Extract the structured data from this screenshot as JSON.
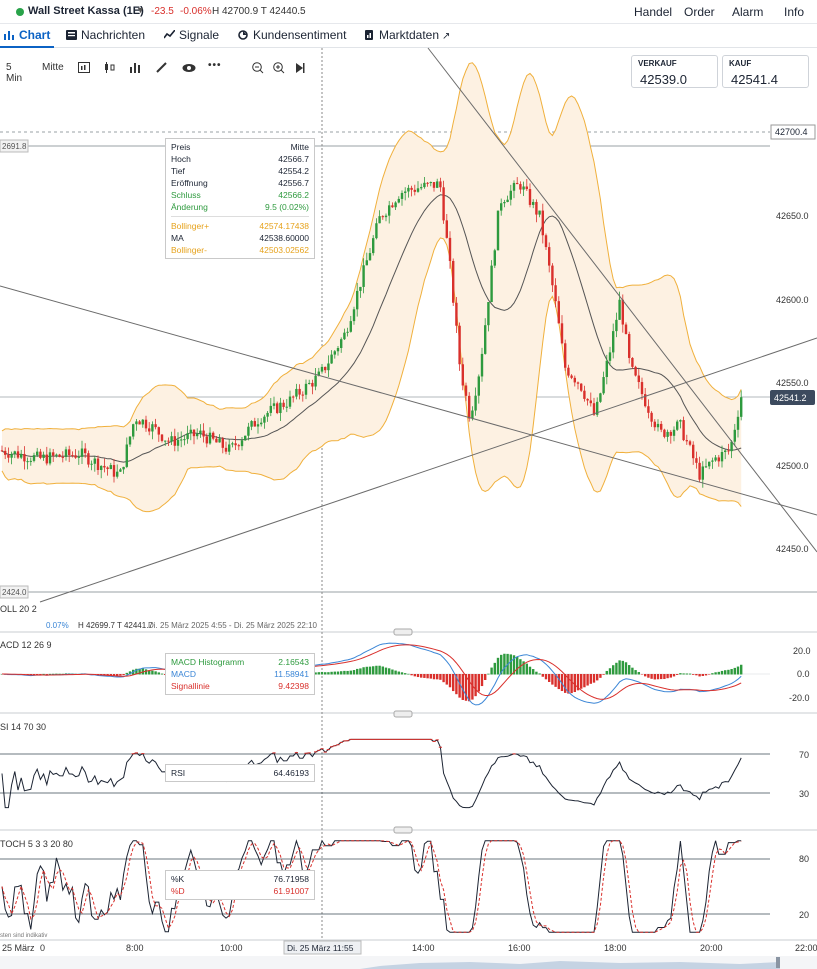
{
  "header": {
    "instrument": "Wall Street Kassa (1E)",
    "change": "-23.5",
    "change_pct": "-0.06%",
    "high_low": "H 42700.9  T 42440.5",
    "nav": [
      "Handel",
      "Order",
      "Alarm",
      "Info"
    ]
  },
  "tabs": [
    {
      "label": "Chart",
      "icon": "chart-icon"
    },
    {
      "label": "Nachrichten",
      "icon": "news-icon"
    },
    {
      "label": "Signale",
      "icon": "signal-icon"
    },
    {
      "label": "Kundensentiment",
      "icon": "sentiment-icon"
    },
    {
      "label": "Marktdaten",
      "icon": "marketdata-icon"
    }
  ],
  "toolbar": {
    "interval": "5 Min",
    "price_type": "Mitte",
    "icons": [
      "chart-type-icon",
      "candle-icon",
      "indicator-icon",
      "draw-icon",
      "eye-icon",
      "more-icon",
      "zoom-out-icon",
      "zoom-in-icon",
      "play-icon"
    ]
  },
  "quotes": {
    "sell_label": "VERKAUF",
    "sell_value": "42539.0",
    "buy_label": "KAUF",
    "buy_value": "42541.4"
  },
  "price_axis": {
    "ticks": [
      "42650.0",
      "42600.0",
      "42550.0",
      "42500.0",
      "42450.0"
    ],
    "high_tag": "42700.4",
    "last_tag": "42541.2",
    "left_high_tag": "2691.8",
    "left_low_tag": "2424.0"
  },
  "ohlc_tooltip": {
    "rows": [
      {
        "label": "Preis",
        "value": "Mitte",
        "color": "#1c2433"
      },
      {
        "label": "Hoch",
        "value": "42566.7",
        "color": "#1c2433"
      },
      {
        "label": "Tief",
        "value": "42554.2",
        "color": "#1c2433"
      },
      {
        "label": "Eröffnung",
        "value": "42556.7",
        "color": "#1c2433"
      },
      {
        "label": "Schluss",
        "value": "42566.2",
        "color": "#2e9a3e"
      },
      {
        "label": "Änderung",
        "value": "9.5 (0.02%)",
        "color": "#2e9a3e"
      },
      {
        "label": "Bollinger+",
        "value": "42574.17438",
        "color": "#e6a21c"
      },
      {
        "label": "MA",
        "value": "42538.60000",
        "color": "#1c2433"
      },
      {
        "label": "Bollinger-",
        "value": "42503.02562",
        "color": "#e6a21c"
      }
    ]
  },
  "legend_bar": {
    "label": "OLL 20 2",
    "pct": "0.07%",
    "hl": "H 42699.7  T 42441.7",
    "range": "Di. 25 März 2025 4:55 - Di. 25 März 2025 22:10"
  },
  "macd": {
    "label": "ACD 12 26 9",
    "ticks": [
      "20.0",
      "0.0",
      "-20.0"
    ],
    "tooltip": [
      {
        "label": "MACD Histogramm",
        "value": "2.16543",
        "color": "#2e9a3e"
      },
      {
        "label": "MACD",
        "value": "11.58941",
        "color": "#3b86d6"
      },
      {
        "label": "Signallinie",
        "value": "9.42398",
        "color": "#d9302c"
      }
    ]
  },
  "rsi": {
    "label": "SI 14 70 30",
    "ticks": [
      "70",
      "30"
    ],
    "tooltip": [
      {
        "label": "RSI",
        "value": "64.46193"
      }
    ]
  },
  "stoch": {
    "label": "TOCH 5 3 3 20 80",
    "ticks": [
      "80",
      "20"
    ],
    "tooltip": [
      {
        "label": "%K",
        "value": "76.71958",
        "color": "#1c2433"
      },
      {
        "label": "%D",
        "value": "61.91007",
        "color": "#d9302c"
      }
    ],
    "note": "sten sind indikativ"
  },
  "time_axis": {
    "ticks": [
      "8:00",
      "10:00",
      "14:00",
      "16:00",
      "18:00",
      "20:00",
      "22:00"
    ],
    "left_date": "25 März",
    "left_zero": "0",
    "cursor_label": "Di. 25 März 11:55"
  },
  "colors": {
    "up": "#2e9a3e",
    "down": "#d9302c",
    "bollinger": "#f0b03c",
    "band_fill": "#fdf1e2",
    "ma": "#555555",
    "accent": "#0b62c4"
  }
}
